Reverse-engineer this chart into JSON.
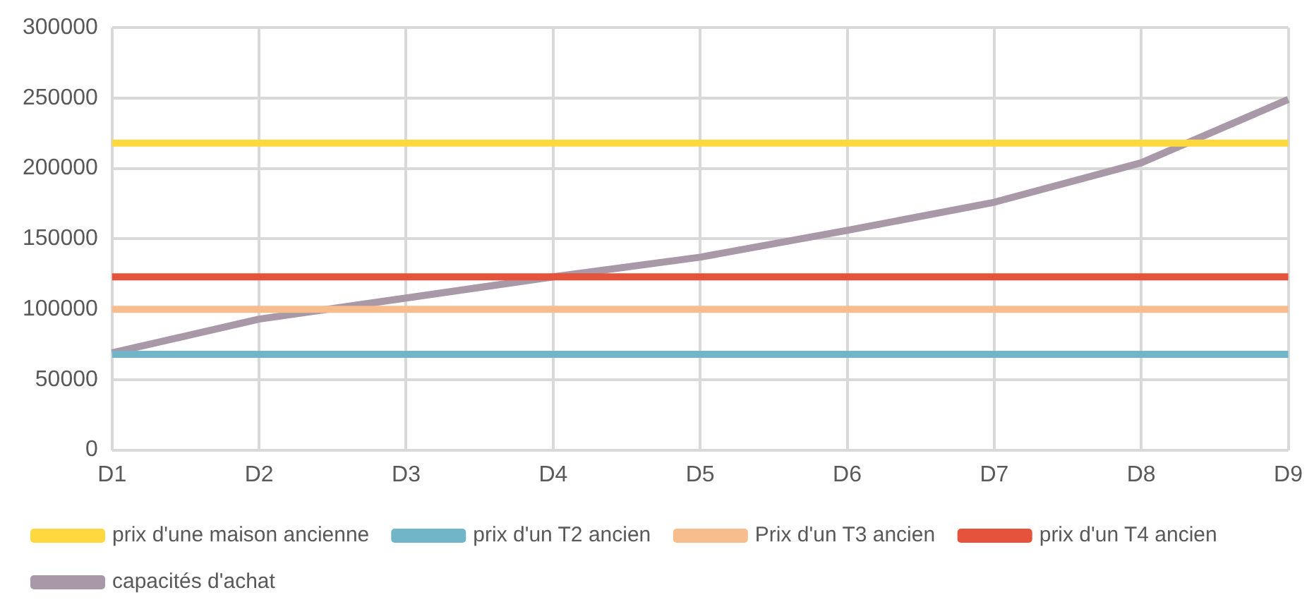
{
  "chart_data": {
    "type": "line",
    "categories": [
      "D1",
      "D2",
      "D3",
      "D4",
      "D5",
      "D6",
      "D7",
      "D8",
      "D9"
    ],
    "series": [
      {
        "name": "prix d'une maison ancienne",
        "color": "#ffd840",
        "values": [
          218000,
          218000,
          218000,
          218000,
          218000,
          218000,
          218000,
          218000,
          218000
        ]
      },
      {
        "name": "prix d'un T2 ancien",
        "color": "#70b6c8",
        "values": [
          68000,
          68000,
          68000,
          68000,
          68000,
          68000,
          68000,
          68000,
          68000
        ]
      },
      {
        "name": "Prix d'un T3 ancien",
        "color": "#f8bd8c",
        "values": [
          100000,
          100000,
          100000,
          100000,
          100000,
          100000,
          100000,
          100000,
          100000
        ]
      },
      {
        "name": "prix d'un T4 ancien",
        "color": "#e5533d",
        "values": [
          123000,
          123000,
          123000,
          123000,
          123000,
          123000,
          123000,
          123000,
          123000
        ]
      },
      {
        "name": "capacités d'achat",
        "color": "#a898a8",
        "values": [
          69000,
          93000,
          108000,
          123000,
          137000,
          156000,
          176000,
          204000,
          249000
        ]
      }
    ],
    "ylim": [
      0,
      300000
    ],
    "yticks": [
      0,
      50000,
      100000,
      150000,
      200000,
      250000,
      300000
    ],
    "grid": true,
    "legend": "bottom",
    "marker": "none",
    "line_style": "solid"
  }
}
